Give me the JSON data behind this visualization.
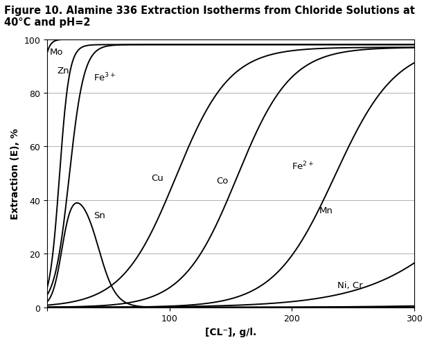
{
  "title": "Figure 10. Alamine 336 Extraction Isotherms from Chloride Solutions at 40°C and pH=2",
  "xlabel": "[CL⁻], g/l.",
  "ylabel": "Extraction (E), %",
  "xlim": [
    0,
    300
  ],
  "ylim": [
    0,
    100
  ],
  "xticks": [
    0,
    100,
    200,
    300
  ],
  "yticks": [
    0,
    20,
    40,
    60,
    80,
    100
  ],
  "background_color": "#ffffff",
  "curve_color": "#000000",
  "grid_color": "#b0b0b0",
  "title_fontsize": 10.5,
  "axis_label_fontsize": 10,
  "tick_fontsize": 9,
  "annotation_fontsize": 9.5
}
